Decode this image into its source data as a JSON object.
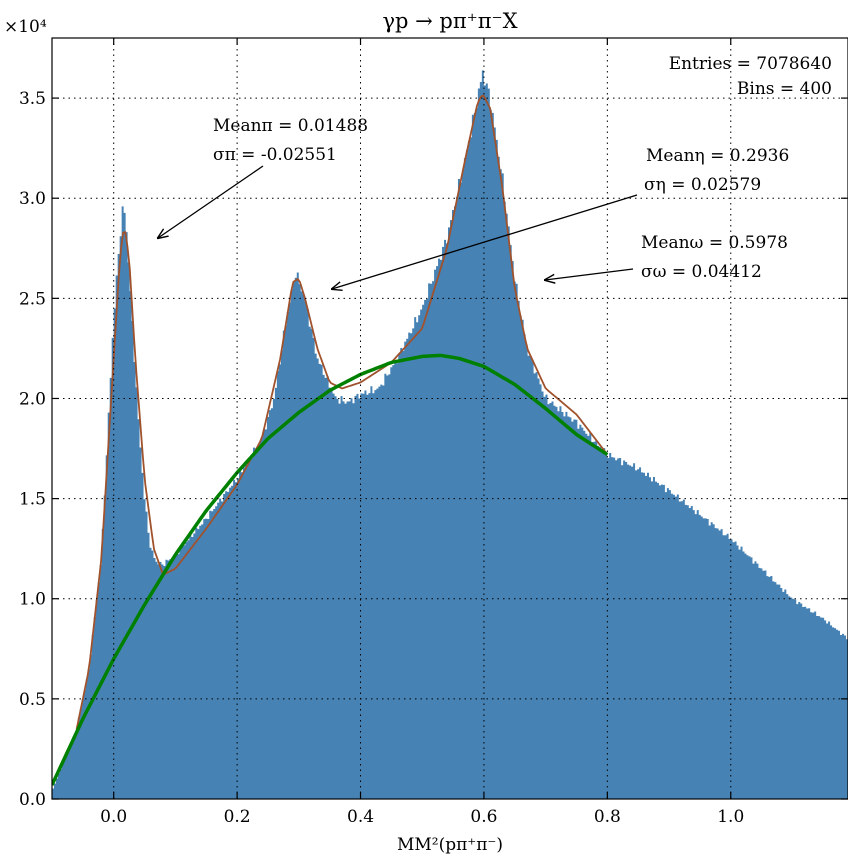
{
  "chart_data": {
    "type": "bar",
    "title": "γp → pπ⁺π⁻X",
    "xlabel": "MM²(pπ⁺π⁻)",
    "ylabel": "",
    "y_multiplier": "×10⁴",
    "xlim": [
      -0.1,
      1.19
    ],
    "ylim": [
      0,
      38000
    ],
    "grid": true,
    "xticks": [
      0.0,
      0.2,
      0.4,
      0.6,
      0.8,
      1.0
    ],
    "xtick_labels": [
      "0.0",
      "0.2",
      "0.4",
      "0.6",
      "0.8",
      "1.0"
    ],
    "yticks": [
      0,
      5000,
      10000,
      15000,
      20000,
      25000,
      30000,
      35000
    ],
    "ytick_labels": [
      "0.0",
      "0.5",
      "1.0",
      "1.5",
      "2.0",
      "2.5",
      "3.0",
      "3.5"
    ],
    "stats": {
      "entries": "Entries = 7078640",
      "bins": "Bins = 400"
    },
    "histogram": {
      "color": "#4682b4",
      "points": [
        [
          -0.1,
          400
        ],
        [
          -0.06,
          3500
        ],
        [
          -0.04,
          6500
        ],
        [
          -0.02,
          12000
        ],
        [
          -0.01,
          18000
        ],
        [
          0.0,
          24000
        ],
        [
          0.01,
          28000
        ],
        [
          0.016,
          29800
        ],
        [
          0.022,
          28000
        ],
        [
          0.03,
          24000
        ],
        [
          0.04,
          19000
        ],
        [
          0.05,
          15000
        ],
        [
          0.06,
          12500
        ],
        [
          0.07,
          11800
        ],
        [
          0.08,
          11700
        ],
        [
          0.1,
          12200
        ],
        [
          0.15,
          14000
        ],
        [
          0.2,
          16000
        ],
        [
          0.24,
          18000
        ],
        [
          0.26,
          20000
        ],
        [
          0.28,
          24000
        ],
        [
          0.295,
          26300
        ],
        [
          0.31,
          25000
        ],
        [
          0.33,
          22000
        ],
        [
          0.36,
          20000
        ],
        [
          0.38,
          19800
        ],
        [
          0.4,
          20200
        ],
        [
          0.43,
          20500
        ],
        [
          0.46,
          22000
        ],
        [
          0.5,
          24500
        ],
        [
          0.54,
          28000
        ],
        [
          0.57,
          32000
        ],
        [
          0.59,
          35000
        ],
        [
          0.598,
          36300
        ],
        [
          0.61,
          35000
        ],
        [
          0.63,
          31000
        ],
        [
          0.65,
          26000
        ],
        [
          0.67,
          22500
        ],
        [
          0.7,
          20000
        ],
        [
          0.75,
          18800
        ],
        [
          0.8,
          17200
        ],
        [
          0.85,
          16500
        ],
        [
          0.9,
          15400
        ],
        [
          0.95,
          14200
        ],
        [
          1.0,
          13000
        ],
        [
          1.05,
          11500
        ],
        [
          1.1,
          10000
        ],
        [
          1.15,
          9000
        ],
        [
          1.19,
          8000
        ]
      ]
    },
    "fit_total": {
      "color": "#a0522d",
      "points": [
        [
          -0.06,
          3500
        ],
        [
          -0.04,
          6500
        ],
        [
          -0.02,
          12000
        ],
        [
          0.0,
          22000
        ],
        [
          0.01,
          27000
        ],
        [
          0.017,
          28700
        ],
        [
          0.025,
          27000
        ],
        [
          0.035,
          22000
        ],
        [
          0.05,
          16000
        ],
        [
          0.065,
          12500
        ],
        [
          0.08,
          11200
        ],
        [
          0.1,
          11500
        ],
        [
          0.15,
          13500
        ],
        [
          0.2,
          15700
        ],
        [
          0.24,
          18000
        ],
        [
          0.27,
          22000
        ],
        [
          0.29,
          25800
        ],
        [
          0.3,
          26000
        ],
        [
          0.31,
          25000
        ],
        [
          0.33,
          22500
        ],
        [
          0.35,
          20800
        ],
        [
          0.37,
          20500
        ],
        [
          0.4,
          20800
        ],
        [
          0.45,
          21800
        ],
        [
          0.5,
          23500
        ],
        [
          0.54,
          27500
        ],
        [
          0.57,
          32000
        ],
        [
          0.59,
          34800
        ],
        [
          0.598,
          35200
        ],
        [
          0.61,
          34500
        ],
        [
          0.63,
          30500
        ],
        [
          0.65,
          25500
        ],
        [
          0.67,
          22500
        ],
        [
          0.7,
          20500
        ],
        [
          0.75,
          19200
        ],
        [
          0.8,
          17200
        ]
      ]
    },
    "fit_background": {
      "color": "#008000",
      "points": [
        [
          -0.1,
          700
        ],
        [
          -0.05,
          4000
        ],
        [
          0.0,
          7000
        ],
        [
          0.05,
          9700
        ],
        [
          0.1,
          12200
        ],
        [
          0.15,
          14400
        ],
        [
          0.2,
          16300
        ],
        [
          0.25,
          18000
        ],
        [
          0.3,
          19300
        ],
        [
          0.35,
          20400
        ],
        [
          0.4,
          21200
        ],
        [
          0.45,
          21800
        ],
        [
          0.5,
          22100
        ],
        [
          0.53,
          22150
        ],
        [
          0.56,
          22000
        ],
        [
          0.6,
          21600
        ],
        [
          0.65,
          20700
        ],
        [
          0.7,
          19500
        ],
        [
          0.75,
          18200
        ],
        [
          0.8,
          17200
        ]
      ]
    },
    "annotations": [
      {
        "line1": "Meanπ = 0.01488",
        "line2": "σπ = -0.02551"
      },
      {
        "line1": "Meanη = 0.2936",
        "line2": "ση = 0.02579"
      },
      {
        "line1": "Meanω = 0.5978",
        "line2": "σω = 0.04412"
      }
    ]
  }
}
